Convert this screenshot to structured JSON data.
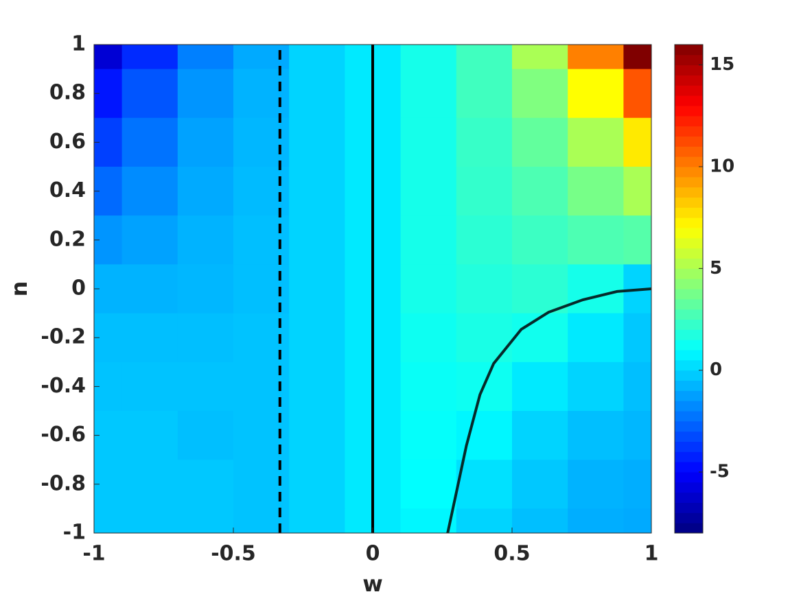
{
  "chart_data": {
    "type": "contour",
    "xlabel": "w",
    "ylabel": "n",
    "xlim": [
      -1,
      1
    ],
    "ylim": [
      -1,
      1
    ],
    "xticks": [
      -1,
      -0.5,
      0,
      0.5,
      1
    ],
    "yticks": [
      -1,
      -0.8,
      -0.6,
      -0.4,
      -0.2,
      0,
      0.2,
      0.4,
      0.6,
      0.8,
      1
    ],
    "colormap": "jet",
    "clim": [
      -8,
      16
    ],
    "cticks": [
      -5,
      0,
      5,
      10,
      15
    ],
    "x": [
      -1,
      -0.8,
      -0.6,
      -0.4,
      -0.2,
      0,
      0.2,
      0.4,
      0.6,
      0.8,
      1
    ],
    "y": [
      1,
      0.8,
      0.6,
      0.4,
      0.2,
      0,
      -0.2,
      -0.4,
      -0.6,
      -0.8,
      -1
    ],
    "z": [
      [
        -6,
        -4,
        -2,
        -1,
        0,
        0.5,
        1.5,
        2.5,
        5,
        10,
        16
      ],
      [
        -4.5,
        -3,
        -1.5,
        -0.8,
        0,
        0.5,
        1.5,
        2.5,
        4,
        7,
        11
      ],
      [
        -3.5,
        -2.3,
        -1.2,
        -0.7,
        0,
        0.5,
        1.5,
        2.3,
        3.3,
        5,
        7.5
      ],
      [
        -2.5,
        -1.7,
        -1,
        -0.6,
        0,
        0.5,
        1.5,
        2.2,
        2.8,
        3.8,
        5
      ],
      [
        -1.5,
        -1.2,
        -0.8,
        -0.5,
        0,
        0.5,
        1.5,
        2,
        2.4,
        2.8,
        3
      ],
      [
        -0.8,
        -0.8,
        -0.7,
        -0.5,
        0,
        0.5,
        1.5,
        1.8,
        2,
        1.5,
        0
      ],
      [
        -0.5,
        -0.5,
        -0.5,
        -0.4,
        0,
        0.5,
        1.3,
        1.6,
        1.4,
        0.5,
        -0.3
      ],
      [
        -0.4,
        -0.4,
        -0.4,
        -0.4,
        0,
        0.5,
        1.2,
        1.3,
        0.5,
        0,
        -0.5
      ],
      [
        -0.3,
        -0.3,
        -0.5,
        -0.4,
        0,
        0.5,
        1.1,
        0.8,
        0,
        -0.5,
        -0.7
      ],
      [
        -0.3,
        -0.3,
        -0.3,
        -0.4,
        0,
        0.5,
        1,
        0.3,
        -0.3,
        -0.8,
        -0.9
      ],
      [
        -0.3,
        -0.3,
        -0.3,
        -0.4,
        0,
        0.5,
        0.8,
        0,
        -0.5,
        -0.9,
        -1
      ]
    ],
    "lines": [
      {
        "style": "dashed",
        "color": "#000000",
        "x": [
          -0.333,
          -0.333
        ],
        "y": [
          -1,
          1
        ]
      },
      {
        "style": "solid",
        "color": "#000000",
        "x": [
          0,
          0
        ],
        "y": [
          -1,
          1
        ]
      },
      {
        "style": "solid",
        "color": "#062a2a",
        "x": [
          0.269,
          0.336,
          0.385,
          0.434,
          0.533,
          0.631,
          0.754,
          0.877,
          1
        ],
        "y": [
          -1,
          -0.643,
          -0.433,
          -0.306,
          -0.166,
          -0.096,
          -0.045,
          -0.011,
          0
        ]
      }
    ]
  }
}
